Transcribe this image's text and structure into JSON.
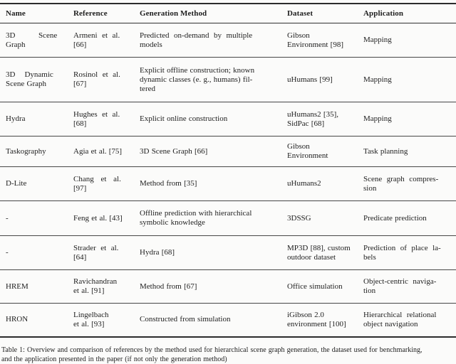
{
  "table": {
    "caption": "Table 1: Overview and comparison of references by the method used for hierarchical scene graph generation, the dataset used for benchmarking,\nand the application presented in the paper (if not only the generation method)",
    "columns": [
      {
        "label": "Name"
      },
      {
        "label": "Reference"
      },
      {
        "label": "Generation Method"
      },
      {
        "label": "Dataset"
      },
      {
        "label": "Application"
      }
    ],
    "rows": [
      {
        "name": "3D          Scene\nGraph",
        "reference": "Armeni  et  al.\n[66]",
        "method": "Predicted  on-demand  by  multiple\nmodels",
        "dataset": "Gibson\nEnvironment [98]",
        "application": "Mapping"
      },
      {
        "name": "3D    Dynamic\nScene Graph",
        "reference": "Rosinol  et  al.\n[67]",
        "method": "Explicit offline construction; known\ndynamic classes (e. g., humans) fil-\ntered",
        "dataset": "uHumans [99]",
        "application": "Mapping"
      },
      {
        "name": "Hydra",
        "reference": "Hughes  et  al.\n[68]",
        "method": "Explicit online construction",
        "dataset": "uHumans2 [35],\nSidPac [68]",
        "application": "Mapping"
      },
      {
        "name": "Taskography",
        "reference": "Agia et al. [75]",
        "method": "3D Scene Graph [66]",
        "dataset": "Gibson\nEnvironment",
        "application": "Task planning"
      },
      {
        "name": "D-Lite",
        "reference": "Chang   et   al.\n[97]",
        "method": "Method from [35]",
        "dataset": "uHumans2",
        "application": "Scene  graph  compres-\nsion"
      },
      {
        "name": "-",
        "reference": "Feng et al. [43]",
        "method": "Offline prediction with hierarchical\nsymbolic knowledge",
        "dataset": "3DSSG",
        "application": "Predicate prediction"
      },
      {
        "name": "-",
        "reference": "Strader  et  al.\n[64]",
        "method": "Hydra [68]",
        "dataset": "MP3D [88], custom\noutdoor dataset",
        "application": "Prediction  of  place  la-\nbels"
      },
      {
        "name": "HREM",
        "reference": "Ravichandran\net al. [91]",
        "method": "Method from [67]",
        "dataset": "Office simulation",
        "application": "Object-centric  naviga-\ntion"
      },
      {
        "name": "HRON",
        "reference": "Lingelbach\net al. [93]",
        "method": "Constructed from simulation",
        "dataset": "iGibson 2.0\nenvironment [100]",
        "application": "Hierarchical  relational\nobject navigation"
      }
    ]
  }
}
